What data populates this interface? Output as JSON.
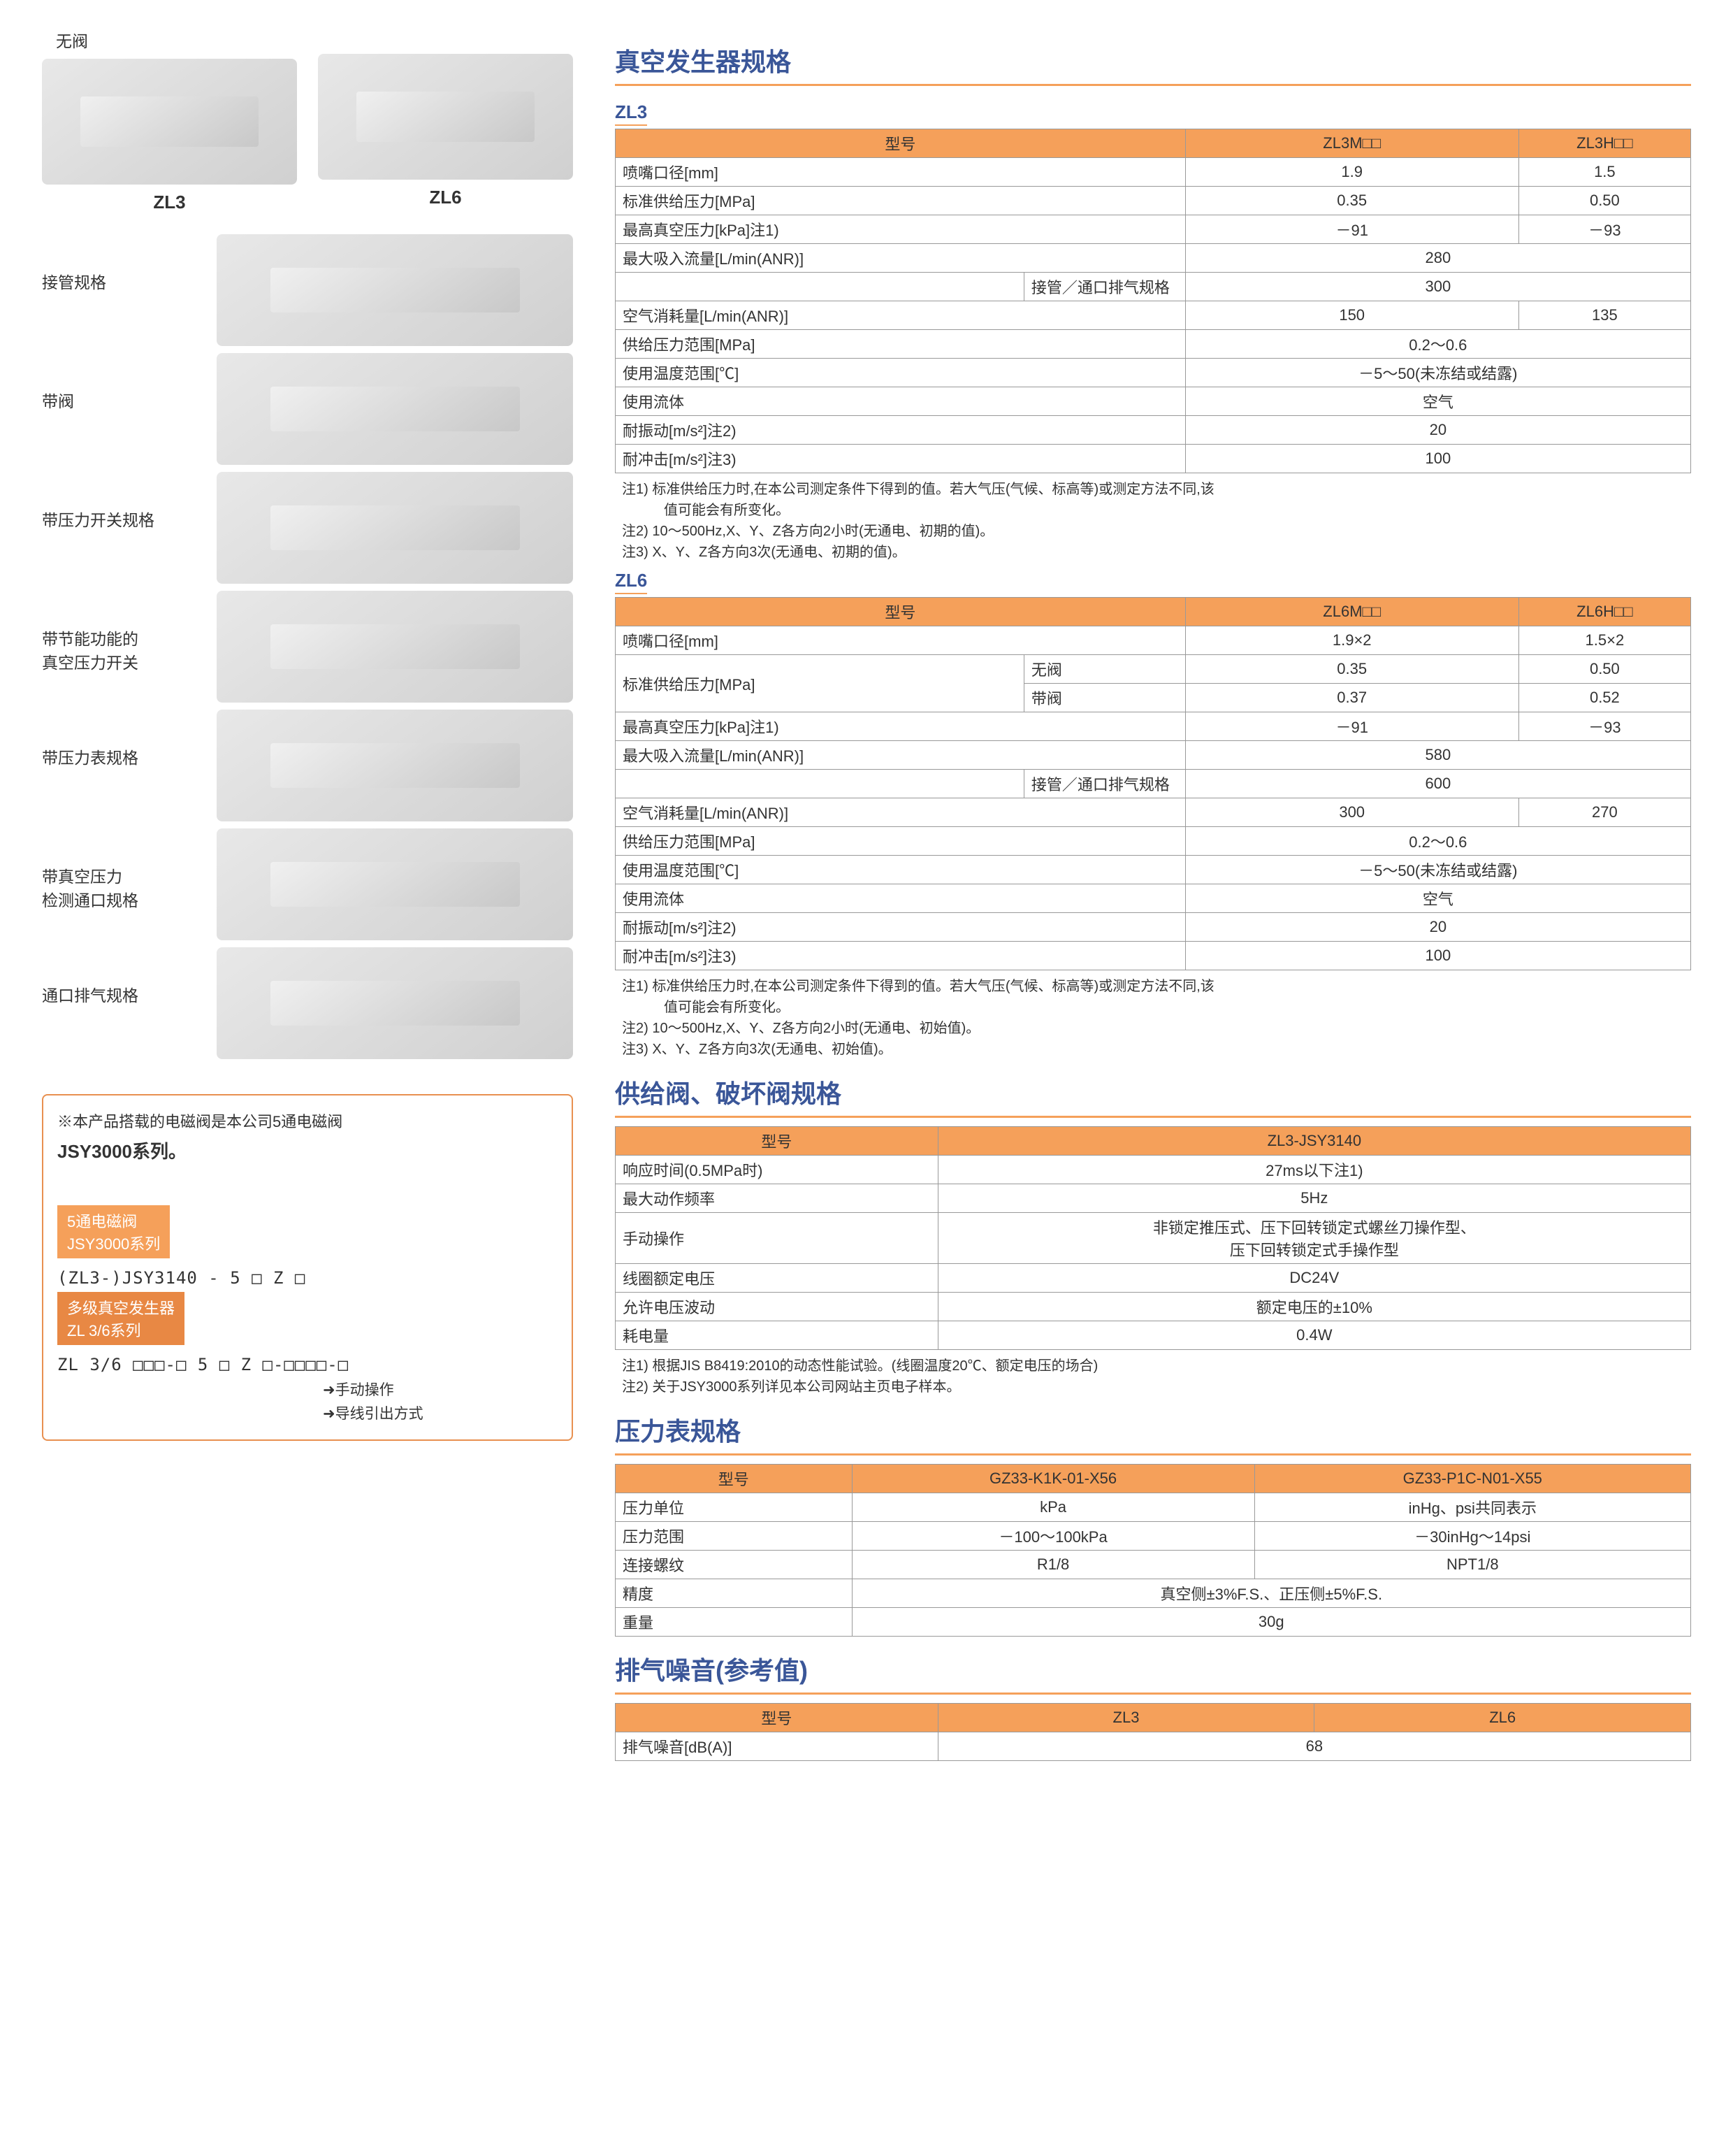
{
  "left": {
    "no_valve": "无阀",
    "zl3": "ZL3",
    "zl6": "ZL6",
    "variants": [
      "接管规格",
      "带阀",
      "带压力开关规格",
      "带节能功能的\n真空压力开关",
      "带压力表规格",
      "带真空压力\n检测通口规格",
      "通口排气规格"
    ],
    "note_line1": "※本产品搭载的电磁阀是本公司5通电磁阀",
    "note_bold": "JSY3000系列。",
    "tag1": "5通电磁阀\nJSY3000系列",
    "tree1": "(ZL3-)JSY3140 - 5 □ Z □",
    "tag2": "多级真空发生器\nZL 3/6系列",
    "tree2": "ZL 3/6 □□□-□ 5 □ Z □-□□□□-□",
    "arrow1": "➜手动操作",
    "arrow2": "➜导线引出方式"
  },
  "sec1": {
    "title": "真空发生器规格",
    "zl3_label": "ZL3",
    "zl3": {
      "head": [
        "型号",
        "ZL3M□□",
        "ZL3H□□"
      ],
      "rows": [
        {
          "p": "喷嘴口径[mm]",
          "a": "1.9",
          "b": "1.5"
        },
        {
          "p": "标准供给压力[MPa]",
          "a": "0.35",
          "b": "0.50"
        },
        {
          "p": "最高真空压力[kPa]注1)",
          "a": "－91",
          "b": "－93"
        },
        {
          "p": "最大吸入流量[L/min(ANR)]",
          "ab": "280"
        },
        {
          "p": "",
          "sub": "接管／通口排气规格",
          "ab": "300"
        },
        {
          "p": "空气消耗量[L/min(ANR)]",
          "a": "150",
          "b": "135"
        },
        {
          "p": "供给压力范围[MPa]",
          "ab": "0.2～0.6"
        },
        {
          "p": "使用温度范围[℃]",
          "ab": "－5～50(未冻结或结露)"
        },
        {
          "p": "使用流体",
          "ab": "空气"
        },
        {
          "p": "耐振动[m/s²]注2)",
          "ab": "20"
        },
        {
          "p": "耐冲击[m/s²]注3)",
          "ab": "100"
        }
      ],
      "notes": [
        "注1) 标准供给压力时,在本公司测定条件下得到的值。若大气压(气候、标高等)或测定方法不同,该",
        "值可能会有所变化。",
        "注2) 10～500Hz,X、Y、Z各方向2小时(无通电、初期的值)。",
        "注3) X、Y、Z各方向3次(无通电、初期的值)。"
      ]
    },
    "zl6_label": "ZL6",
    "zl6": {
      "head": [
        "型号",
        "ZL6M□□",
        "ZL6H□□"
      ],
      "rows": [
        {
          "p": "喷嘴口径[mm]",
          "a": "1.9×2",
          "b": "1.5×2"
        },
        {
          "p": "标准供给压力[MPa]",
          "sub": "无阀",
          "a": "0.35",
          "b": "0.50",
          "rowspan": 2
        },
        {
          "sub": "带阀",
          "a": "0.37",
          "b": "0.52"
        },
        {
          "p": "最高真空压力[kPa]注1)",
          "a": "－91",
          "b": "－93"
        },
        {
          "p": "最大吸入流量[L/min(ANR)]",
          "ab": "580"
        },
        {
          "p": "",
          "sub": "接管／通口排气规格",
          "ab": "600"
        },
        {
          "p": "空气消耗量[L/min(ANR)]",
          "a": "300",
          "b": "270"
        },
        {
          "p": "供给压力范围[MPa]",
          "ab": "0.2～0.6"
        },
        {
          "p": "使用温度范围[℃]",
          "ab": "－5～50(未冻结或结露)"
        },
        {
          "p": "使用流体",
          "ab": "空气"
        },
        {
          "p": "耐振动[m/s²]注2)",
          "ab": "20"
        },
        {
          "p": "耐冲击[m/s²]注3)",
          "ab": "100"
        }
      ],
      "notes": [
        "注1) 标准供给压力时,在本公司测定条件下得到的值。若大气压(气候、标高等)或测定方法不同,该",
        "值可能会有所变化。",
        "注2) 10～500Hz,X、Y、Z各方向2小时(无通电、初始值)。",
        "注3) X、Y、Z各方向3次(无通电、初始值)。"
      ]
    }
  },
  "sec2": {
    "title": "供给阀、破坏阀规格",
    "head": [
      "型号",
      "ZL3-JSY3140"
    ],
    "rows": [
      {
        "p": "响应时间(0.5MPa时)",
        "v": "27ms以下注1)"
      },
      {
        "p": "最大动作频率",
        "v": "5Hz"
      },
      {
        "p": "手动操作",
        "v": "非锁定推压式、压下回转锁定式螺丝刀操作型、\n压下回转锁定式手操作型"
      },
      {
        "p": "线圈额定电压",
        "v": "DC24V"
      },
      {
        "p": "允许电压波动",
        "v": "额定电压的±10%"
      },
      {
        "p": "耗电量",
        "v": "0.4W"
      }
    ],
    "notes": [
      "注1) 根据JIS B8419:2010的动态性能试验。(线圈温度20℃、额定电压的场合)",
      "注2) 关于JSY3000系列详见本公司网站主页电子样本。"
    ]
  },
  "sec3": {
    "title": "压力表规格",
    "head": [
      "型号",
      "GZ33-K1K-01-X56",
      "GZ33-P1C-N01-X55"
    ],
    "rows": [
      {
        "p": "压力单位",
        "a": "kPa",
        "b": "inHg、psi共同表示"
      },
      {
        "p": "压力范围",
        "a": "－100～100kPa",
        "b": "－30inHg～14psi"
      },
      {
        "p": "连接螺纹",
        "a": "R1/8",
        "b": "NPT1/8"
      },
      {
        "p": "精度",
        "ab": "真空侧±3%F.S.、正压侧±5%F.S."
      },
      {
        "p": "重量",
        "ab": "30g"
      }
    ]
  },
  "sec4": {
    "title": "排气噪音(参考值)",
    "head": [
      "型号",
      "ZL3",
      "ZL6"
    ],
    "rows": [
      {
        "p": "排气噪音[dB(A)]",
        "ab": "68"
      }
    ]
  },
  "colors": {
    "heading": "#3a5698",
    "accent": "#f5a05a",
    "border": "#999999"
  }
}
